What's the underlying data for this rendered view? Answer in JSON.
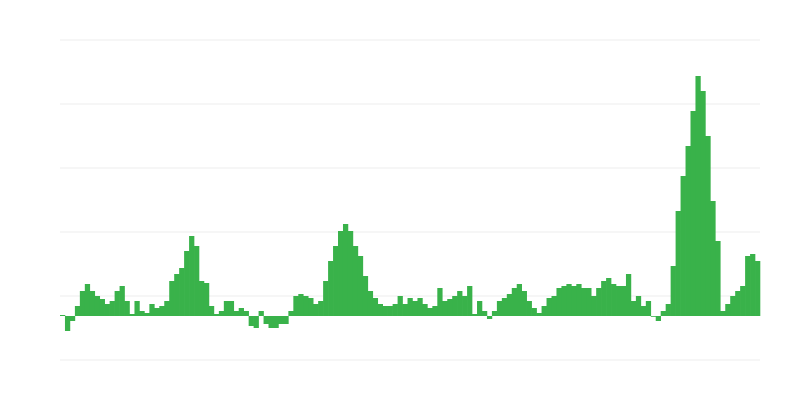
{
  "chart_data": {
    "type": "bar",
    "title": "",
    "xlabel": "",
    "ylabel": "",
    "grid": true,
    "ylim": [
      -44,
      276
    ],
    "gridlines": [
      -44,
      20,
      84,
      148,
      212,
      276
    ],
    "bar_color": "#39b24a",
    "grid_color": "#ececec",
    "values": [
      1,
      -15,
      -5,
      10,
      25,
      32,
      25,
      20,
      17,
      12,
      15,
      25,
      30,
      15,
      2,
      15,
      5,
      3,
      12,
      8,
      10,
      15,
      35,
      42,
      48,
      65,
      80,
      70,
      35,
      33,
      10,
      2,
      5,
      15,
      15,
      5,
      8,
      5,
      -10,
      -12,
      5,
      -8,
      -12,
      -12,
      -8,
      -8,
      5,
      20,
      22,
      20,
      18,
      12,
      15,
      35,
      55,
      70,
      85,
      92,
      85,
      70,
      60,
      40,
      25,
      18,
      12,
      10,
      10,
      12,
      20,
      12,
      18,
      15,
      18,
      12,
      8,
      10,
      28,
      15,
      17,
      20,
      25,
      20,
      30,
      2,
      15,
      5,
      -3,
      5,
      15,
      18,
      22,
      28,
      32,
      25,
      15,
      8,
      3,
      10,
      18,
      20,
      28,
      30,
      32,
      30,
      32,
      28,
      28,
      20,
      28,
      35,
      38,
      32,
      30,
      30,
      42,
      15,
      20,
      10,
      15,
      0,
      -5,
      5,
      12,
      50,
      105,
      140,
      170,
      205,
      240,
      225,
      180,
      115,
      75,
      5,
      12,
      20,
      25,
      30,
      60,
      62,
      55
    ]
  }
}
